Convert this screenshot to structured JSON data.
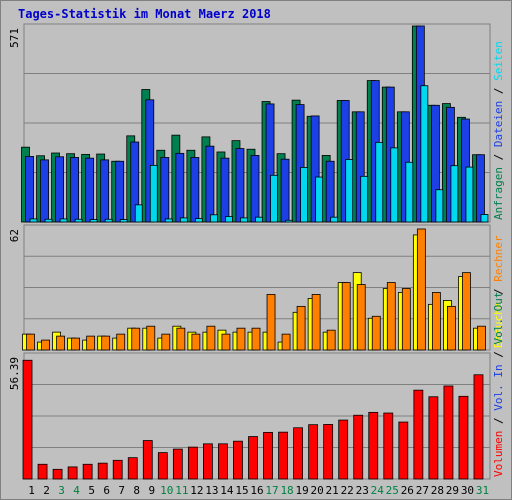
{
  "chart_data": [
    {
      "type": "bar",
      "title": "Tages-Statistik im Monat Maerz 2018",
      "ymax_label": "571",
      "ylim": [
        0,
        571
      ],
      "right_legend": [
        {
          "label": "Anfragen",
          "color": "#007f4f"
        },
        {
          "label": "Dateien",
          "color": "#1c40e6"
        },
        {
          "label": "Seiten",
          "color": "#00d8f0"
        }
      ],
      "categories": [
        "1",
        "2",
        "3",
        "4",
        "5",
        "6",
        "7",
        "8",
        "9",
        "10",
        "11",
        "12",
        "13",
        "14",
        "15",
        "16",
        "17",
        "18",
        "19",
        "20",
        "21",
        "22",
        "23",
        "24",
        "25",
        "26",
        "27",
        "28",
        "29",
        "30",
        "31"
      ],
      "series": [
        {
          "name": "Anfragen",
          "values": [
            218,
            193,
            201,
            199,
            197,
            198,
            177,
            251,
            386,
            209,
            253,
            209,
            248,
            204,
            237,
            212,
            351,
            199,
            355,
            308,
            194,
            354,
            321,
            412,
            393,
            321,
            571,
            340,
            345,
            305,
            196
          ]
        },
        {
          "name": "Dateien",
          "values": [
            191,
            181,
            190,
            188,
            186,
            181,
            177,
            233,
            356,
            188,
            200,
            188,
            221,
            186,
            214,
            194,
            344,
            183,
            342,
            309,
            177,
            354,
            321,
            412,
            393,
            321,
            571,
            340,
            334,
            300,
            196
          ]
        },
        {
          "name": "Seiten",
          "values": [
            9,
            8,
            9,
            8,
            7,
            8,
            7,
            50,
            165,
            9,
            12,
            10,
            21,
            16,
            12,
            14,
            136,
            5,
            159,
            131,
            14,
            182,
            133,
            232,
            216,
            174,
            397,
            94,
            164,
            160,
            22
          ]
        }
      ]
    },
    {
      "type": "bar",
      "ymax_label": "62",
      "ylim": [
        0,
        62
      ],
      "right_legend": [
        {
          "label": "Besuche",
          "color": "#ffff00"
        },
        {
          "label": "Rechner",
          "color": "#ff8000"
        }
      ],
      "categories": [
        "1",
        "2",
        "3",
        "4",
        "5",
        "6",
        "7",
        "8",
        "9",
        "10",
        "11",
        "12",
        "13",
        "14",
        "15",
        "16",
        "17",
        "18",
        "19",
        "20",
        "21",
        "22",
        "23",
        "24",
        "25",
        "26",
        "27",
        "28",
        "29",
        "30",
        "31"
      ],
      "series": [
        {
          "name": "Besuche",
          "values": [
            8,
            4,
            9,
            6,
            5,
            7,
            6,
            11,
            11,
            6,
            12,
            9,
            9,
            10,
            9,
            9,
            9,
            4,
            19,
            26,
            9,
            34,
            39,
            16,
            31,
            29,
            58,
            23,
            25,
            37,
            11
          ]
        },
        {
          "name": "Rechner",
          "values": [
            8,
            5,
            7,
            6,
            7,
            7,
            8,
            11,
            12,
            8,
            11,
            8,
            12,
            8,
            11,
            11,
            28,
            8,
            22,
            28,
            10,
            34,
            33,
            17,
            34,
            31,
            61,
            29,
            22,
            39,
            12
          ]
        }
      ]
    },
    {
      "type": "bar",
      "ymax_label": "56.39",
      "ylim": [
        0,
        56.39
      ],
      "right_legend": [
        {
          "label": "Volumen",
          "color": "#ff0000"
        },
        {
          "label": "Vol. In",
          "color": "#1c40e6"
        },
        {
          "label": "Vol. Out",
          "color": "#007f4f"
        }
      ],
      "categories": [
        "1",
        "2",
        "3",
        "4",
        "5",
        "6",
        "7",
        "8",
        "9",
        "10",
        "11",
        "12",
        "13",
        "14",
        "15",
        "16",
        "17",
        "18",
        "19",
        "20",
        "21",
        "22",
        "23",
        "24",
        "25",
        "26",
        "27",
        "28",
        "29",
        "30",
        "31"
      ],
      "series": [
        {
          "name": "Volumen",
          "values": [
            54.0,
            6.7,
            4.4,
            5.5,
            6.7,
            7.2,
            8.5,
            9.7,
            17.5,
            12.0,
            13.6,
            14.5,
            16.0,
            16.0,
            17.2,
            19.3,
            21.2,
            21.3,
            23.3,
            24.7,
            24.8,
            26.8,
            29.0,
            30.3,
            30.0,
            25.9,
            40.4,
            37.4,
            42.3,
            37.6,
            47.4
          ]
        }
      ]
    }
  ],
  "weekend_days": [
    "3",
    "4",
    "10",
    "11",
    "17",
    "18",
    "24",
    "25",
    "31"
  ],
  "colors": {
    "frame_bg": "#c0c0c0",
    "plot_bg": "#c0c0c0",
    "title": "#0000cc",
    "weekday_label": "#000000",
    "weekend_label": "#008040",
    "separator": "#000000",
    "outline": "#000000"
  }
}
